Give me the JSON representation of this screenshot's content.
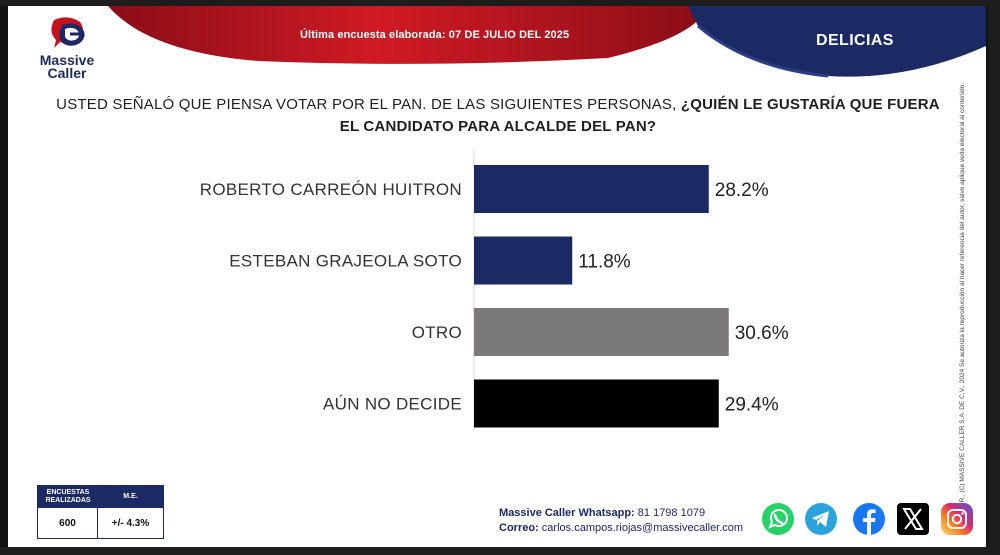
{
  "header": {
    "survey_date": "Última encuesta elaborada: 07 DE JULIO DEL 2025",
    "location": "DELICIAS",
    "logo_name": "Massive Caller"
  },
  "question": {
    "prefix": "USTED SEÑALÓ QUE PIENSA VOTAR POR EL PAN. DE LAS SIGUIENTES PERSONAS,",
    "emphasis": "¿QUIÉN LE GUSTARÍA QUE FUERA EL CANDIDATO PARA ALCALDE DEL PAN?"
  },
  "chart_data": {
    "type": "bar",
    "orientation": "horizontal",
    "categories": [
      "ROBERTO CARREÓN HUITRON",
      "ESTEBAN GRAJEOLA SOTO",
      "OTRO",
      "AÚN NO DECIDE"
    ],
    "values": [
      28.2,
      11.8,
      30.6,
      29.4
    ],
    "value_labels": [
      "28.2%",
      "11.8%",
      "30.6%",
      "29.4%"
    ],
    "colors": [
      "#1b2a65",
      "#1b2a65",
      "#7a7878",
      "#000000"
    ],
    "xlim": [
      0,
      40
    ],
    "grid": false
  },
  "stats": {
    "surveys_label": "ENCUESTAS REALIZADAS",
    "me_label": "M.E.",
    "surveys_value": "600",
    "me_value": "+/- 4.3%"
  },
  "contact": {
    "whatsapp_label": "Massive Caller Whatsapp:",
    "whatsapp_number": "81 1798 1079",
    "email_label": "Correo:",
    "email": "carlos.campos.riojas@massivecaller.com"
  },
  "copyright_text": "D.R., (C) MASSIVE CALLER S.A. DE C.V., 2024 Se autoriza la reproducción al hacer referencia del autor, salvo aplique veda electoral al contenido.",
  "social_icons": [
    "whatsapp-icon",
    "telegram-icon",
    "facebook-icon",
    "x-icon",
    "instagram-icon"
  ],
  "colors": {
    "brand_navy": "#1b2a65",
    "brand_red": "#c4121e",
    "other_gray": "#7a7878"
  }
}
